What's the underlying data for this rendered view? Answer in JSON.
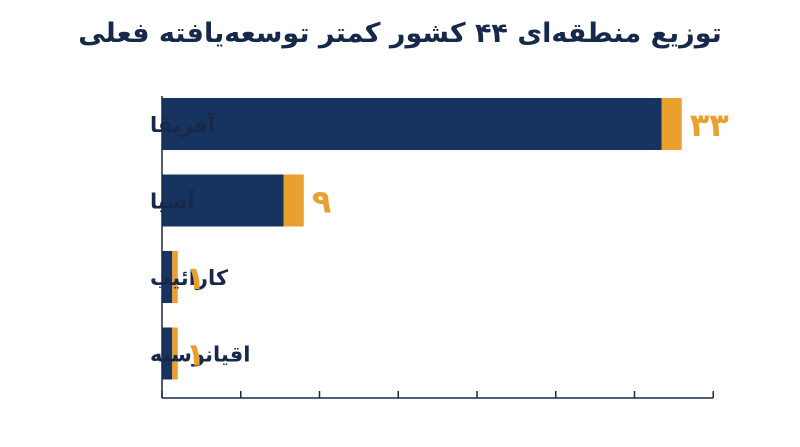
{
  "chart_data": {
    "type": "bar",
    "orientation": "horizontal",
    "title": "توزیع منطقه‌ای ۴۴ کشور کمتر توسعه‌یافته فعلی",
    "xlabel": "",
    "ylabel": "",
    "categories": [
      "آفریقا",
      "آسیا",
      "کارائیب",
      "اقیانوسیه"
    ],
    "values": [
      33,
      9,
      1,
      1
    ],
    "value_labels": [
      "۳۳",
      "۹",
      "۱",
      "۱"
    ],
    "xlim": [
      0,
      35
    ],
    "x_ticks": [
      0,
      5,
      10,
      15,
      20,
      25,
      30,
      35
    ],
    "x_tick_labels_shown": false,
    "grid": false,
    "legend": "none",
    "colors": {
      "bar": "#16345f",
      "bar_tip": "#e9a02f",
      "value_label": "#e9a02f",
      "text": "#16294a",
      "axis": "#16294a"
    }
  }
}
